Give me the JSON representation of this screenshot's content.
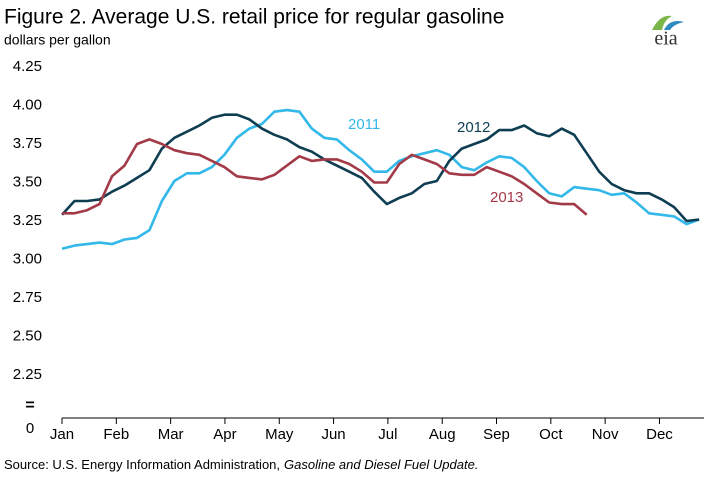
{
  "chart_data": {
    "type": "line",
    "title": "Figure 2. Average U.S. retail price for regular gasoline",
    "subtitle": "dollars per gallon",
    "logo": "eia",
    "source": "Source: U.S. Energy Information Administration,",
    "source_publication": "Gasoline and Diesel Fuel Update.",
    "axis_break_label": "0",
    "x": [
      0,
      0.23,
      0.46,
      0.69,
      0.92,
      1.15,
      1.38,
      1.61,
      1.84,
      2.07,
      2.3,
      2.53,
      2.76,
      2.99,
      3.22,
      3.45,
      3.68,
      3.91,
      4.14,
      4.37,
      4.6,
      4.83,
      5.06,
      5.29,
      5.52,
      5.75,
      5.98,
      6.21,
      6.44,
      6.67,
      6.9,
      7.13,
      7.36,
      7.59,
      7.82,
      8.05,
      8.28,
      8.51,
      8.74,
      8.97,
      9.2,
      9.43,
      9.66,
      9.89,
      10.12,
      10.35,
      10.58,
      10.81,
      11.04,
      11.27,
      11.5,
      11.73
    ],
    "xlim": [
      0,
      11.82
    ],
    "xticks": [
      {
        "value": 0,
        "label": "Jan"
      },
      {
        "value": 1,
        "label": "Feb"
      },
      {
        "value": 2,
        "label": "Mar"
      },
      {
        "value": 3,
        "label": "Apr"
      },
      {
        "value": 4,
        "label": "May"
      },
      {
        "value": 5,
        "label": "Jun"
      },
      {
        "value": 6,
        "label": "Jul"
      },
      {
        "value": 7,
        "label": "Aug"
      },
      {
        "value": 8,
        "label": "Sep"
      },
      {
        "value": 9,
        "label": "Oct"
      },
      {
        "value": 10,
        "label": "Nov"
      },
      {
        "value": 11,
        "label": "Dec"
      }
    ],
    "ylim": [
      2.0,
      4.25
    ],
    "yticks": [
      4.25,
      {
        "value": 4,
        "label": "4.00"
      },
      3.75,
      {
        "value": 3.5,
        "label": "3.50"
      },
      3.25,
      {
        "value": 3,
        "label": "3.00"
      },
      2.75,
      {
        "value": 2.5,
        "label": "2.50"
      },
      2.25
    ],
    "grid": false,
    "series": [
      {
        "name": "2011",
        "color": "#33b8ea",
        "values": [
          3.07,
          3.09,
          3.1,
          3.11,
          3.1,
          3.13,
          3.14,
          3.19,
          3.38,
          3.51,
          3.56,
          3.56,
          3.6,
          3.68,
          3.79,
          3.85,
          3.88,
          3.96,
          3.97,
          3.96,
          3.85,
          3.79,
          3.78,
          3.71,
          3.65,
          3.57,
          3.57,
          3.64,
          3.67,
          3.69,
          3.71,
          3.68,
          3.6,
          3.58,
          3.63,
          3.67,
          3.66,
          3.6,
          3.51,
          3.43,
          3.41,
          3.47,
          3.46,
          3.45,
          3.42,
          3.43,
          3.37,
          3.3,
          3.29,
          3.28,
          3.23,
          3.26
        ]
      },
      {
        "name": "2012",
        "color": "#0f3d52",
        "values": [
          3.29,
          3.38,
          3.38,
          3.39,
          3.44,
          3.48,
          3.53,
          3.58,
          3.72,
          3.79,
          3.83,
          3.87,
          3.92,
          3.94,
          3.94,
          3.91,
          3.85,
          3.81,
          3.78,
          3.73,
          3.7,
          3.65,
          3.61,
          3.57,
          3.53,
          3.44,
          3.36,
          3.4,
          3.43,
          3.49,
          3.51,
          3.64,
          3.72,
          3.75,
          3.78,
          3.84,
          3.84,
          3.87,
          3.82,
          3.8,
          3.85,
          3.81,
          3.69,
          3.57,
          3.49,
          3.45,
          3.43,
          3.43,
          3.39,
          3.34,
          3.25,
          3.26
        ]
      },
      {
        "name": "2013",
        "color": "#a33a48",
        "values": [
          3.3,
          3.3,
          3.32,
          3.36,
          3.54,
          3.61,
          3.75,
          3.78,
          3.75,
          3.71,
          3.69,
          3.68,
          3.64,
          3.6,
          3.54,
          3.53,
          3.52,
          3.55,
          3.61,
          3.67,
          3.64,
          3.65,
          3.65,
          3.62,
          3.57,
          3.5,
          3.5,
          3.62,
          3.68,
          3.65,
          3.62,
          3.56,
          3.55,
          3.55,
          3.6,
          3.57,
          3.54,
          3.49,
          3.43,
          3.37,
          3.36,
          3.36,
          3.29,
          null,
          null,
          null,
          null,
          null,
          null,
          null,
          null,
          null
        ]
      }
    ]
  }
}
